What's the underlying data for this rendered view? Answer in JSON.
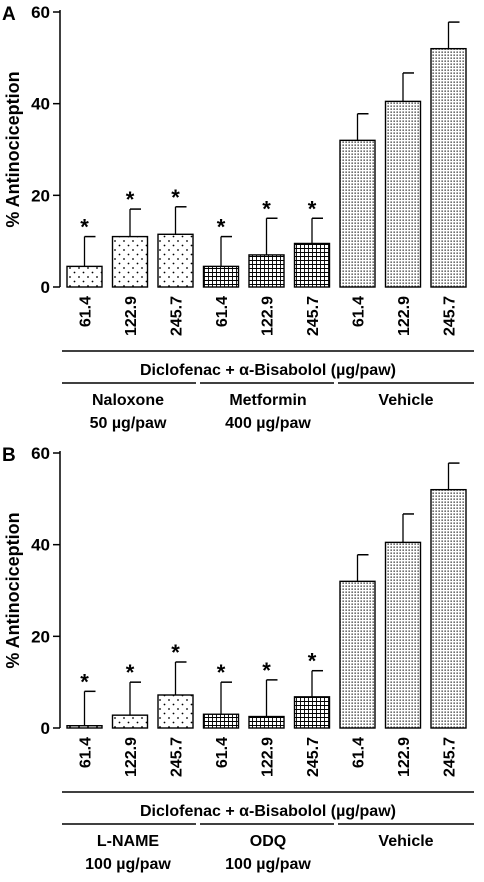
{
  "chart_data": [
    {
      "type": "bar",
      "panel_label": "A",
      "ylabel": "% Antinociception",
      "ylim": [
        0,
        60
      ],
      "yticks": [
        0,
        20,
        40,
        60
      ],
      "categories": [
        "61.4",
        "122.9",
        "245.7",
        "61.4",
        "122.9",
        "245.7",
        "61.4",
        "122.9",
        "245.7"
      ],
      "values": [
        4.5,
        11.0,
        11.5,
        4.5,
        7.0,
        9.5,
        32.0,
        40.5,
        52.0
      ],
      "errors": [
        6.5,
        6.0,
        6.0,
        6.5,
        8.0,
        5.5,
        5.8,
        6.2,
        5.8
      ],
      "significant": [
        true,
        true,
        true,
        true,
        true,
        true,
        false,
        false,
        false
      ],
      "significance_marker": "*",
      "xlabel_main": "Diclofenac + α-Bisabolol (µg/paw)",
      "groups": [
        {
          "line1": "Naloxone",
          "line2": "50 µg/paw",
          "pattern": "dots"
        },
        {
          "line1": "Metformin",
          "line2": "400 µg/paw",
          "pattern": "grid"
        },
        {
          "line1": "Vehicle",
          "line2": "",
          "pattern": "dense"
        }
      ]
    },
    {
      "type": "bar",
      "panel_label": "B",
      "ylabel": "% Antinociception",
      "ylim": [
        0,
        60
      ],
      "yticks": [
        0,
        20,
        40,
        60
      ],
      "categories": [
        "61.4",
        "122.9",
        "245.7",
        "61.4",
        "122.9",
        "245.7",
        "61.4",
        "122.9",
        "245.7"
      ],
      "values": [
        0.5,
        2.8,
        7.2,
        3.0,
        2.5,
        6.8,
        32.0,
        40.5,
        52.0
      ],
      "errors": [
        7.5,
        7.2,
        7.2,
        7.0,
        8.0,
        5.7,
        5.8,
        6.2,
        5.8
      ],
      "significant": [
        true,
        true,
        true,
        true,
        true,
        true,
        false,
        false,
        false
      ],
      "significance_marker": "*",
      "xlabel_main": "Diclofenac + α-Bisabolol (µg/paw)",
      "groups": [
        {
          "line1": "L-NAME",
          "line2": "100 µg/paw",
          "pattern": "dots"
        },
        {
          "line1": "ODQ",
          "line2": "100 µg/paw",
          "pattern": "grid"
        },
        {
          "line1": "Vehicle",
          "line2": "",
          "pattern": "dense"
        }
      ]
    }
  ]
}
